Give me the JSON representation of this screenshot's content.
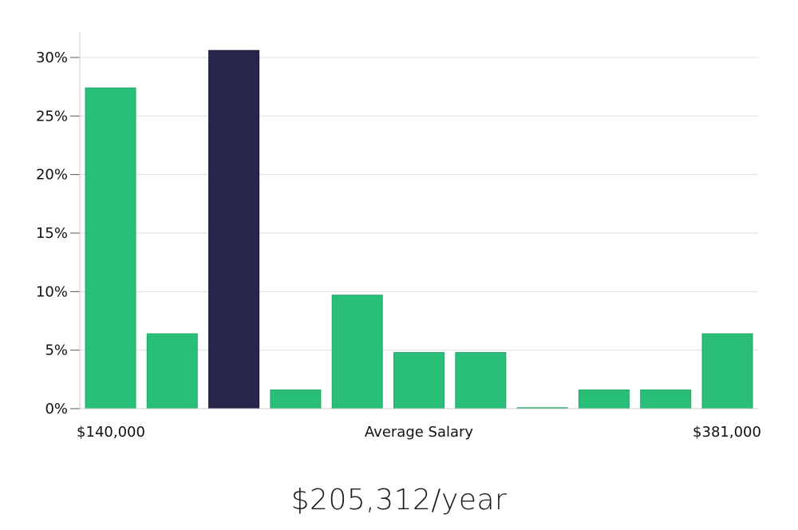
{
  "chart_data": {
    "type": "bar",
    "categories": [
      "1",
      "2",
      "3",
      "4",
      "5",
      "6",
      "7",
      "8",
      "9",
      "10",
      "11"
    ],
    "values": [
      27.4,
      6.4,
      30.6,
      1.6,
      9.7,
      4.8,
      4.8,
      0.05,
      1.6,
      1.6,
      6.4
    ],
    "highlight_index": 2,
    "ylim": [
      0,
      32
    ],
    "yticks": [
      0,
      5,
      10,
      15,
      20,
      25,
      30
    ],
    "ytick_labels": [
      "0%",
      "5%",
      "10%",
      "15%",
      "20%",
      "25%",
      "30%"
    ],
    "x_min_label": "$140,000",
    "xlabel": "Average Salary",
    "x_max_label": "$381,000",
    "grid": true,
    "colors": {
      "bar": "#2abf78",
      "highlight": "#27254a",
      "grid": "#dddddd",
      "axis": "#cccccc",
      "text": "#111111"
    }
  },
  "summary": {
    "salary_text": "$205,312/year"
  }
}
